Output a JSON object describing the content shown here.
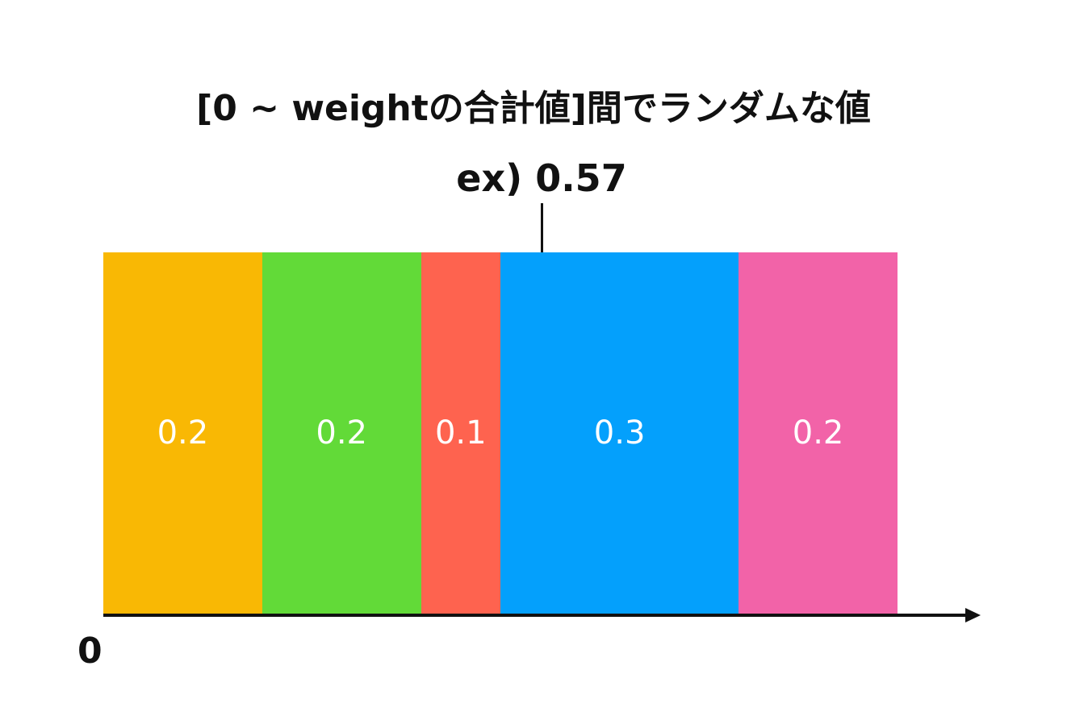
{
  "title": "[0 ~ weightの合計値]間でランダムな値",
  "example_label": "ex) 0.57",
  "origin_label": "0",
  "chart_data": {
    "type": "bar",
    "orientation": "stacked-horizontal",
    "segments": [
      {
        "label": "0.2",
        "value": 0.2,
        "color": "#F9B804"
      },
      {
        "label": "0.2",
        "value": 0.2,
        "color": "#62DA38"
      },
      {
        "label": "0.1",
        "value": 0.1,
        "color": "#FE634F"
      },
      {
        "label": "0.3",
        "value": 0.3,
        "color": "#04A0FC"
      },
      {
        "label": "0.2",
        "value": 0.2,
        "color": "#F263A8"
      }
    ],
    "marker_value": 0.57,
    "axis_start": "0"
  }
}
